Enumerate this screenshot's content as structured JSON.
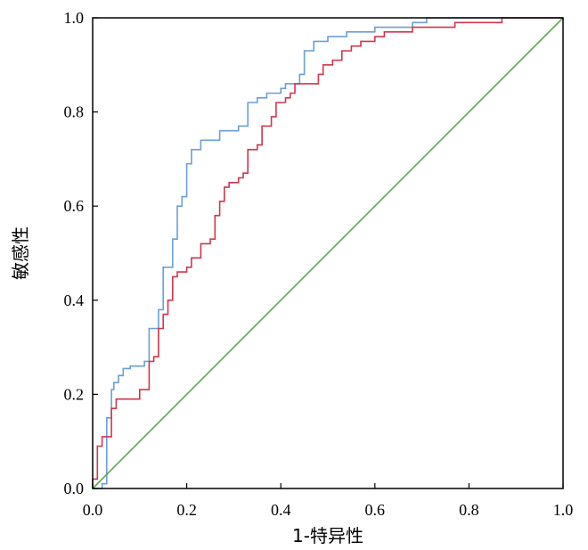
{
  "chart_data": {
    "type": "line",
    "title": "",
    "xlabel": "1-特异性",
    "ylabel": "敏感性",
    "xlim": [
      0.0,
      1.0
    ],
    "ylim": [
      0.0,
      1.0
    ],
    "x_ticks": [
      "0.0",
      "0.2",
      "0.4",
      "0.6",
      "0.8",
      "1.0"
    ],
    "y_ticks": [
      "0.0",
      "0.2",
      "0.4",
      "0.6",
      "0.8",
      "1.0"
    ],
    "grid": false,
    "legend": "none",
    "series": [
      {
        "color": "#6a9fd8",
        "points": [
          [
            0.0,
            0.0
          ],
          [
            0.02,
            0.0
          ],
          [
            0.02,
            0.01
          ],
          [
            0.03,
            0.01
          ],
          [
            0.03,
            0.15
          ],
          [
            0.04,
            0.15
          ],
          [
            0.04,
            0.21
          ],
          [
            0.045,
            0.21
          ],
          [
            0.045,
            0.225
          ],
          [
            0.055,
            0.225
          ],
          [
            0.055,
            0.24
          ],
          [
            0.065,
            0.24
          ],
          [
            0.065,
            0.255
          ],
          [
            0.08,
            0.255
          ],
          [
            0.08,
            0.26
          ],
          [
            0.11,
            0.26
          ],
          [
            0.11,
            0.27
          ],
          [
            0.12,
            0.27
          ],
          [
            0.12,
            0.34
          ],
          [
            0.14,
            0.34
          ],
          [
            0.14,
            0.38
          ],
          [
            0.15,
            0.38
          ],
          [
            0.15,
            0.47
          ],
          [
            0.17,
            0.47
          ],
          [
            0.17,
            0.53
          ],
          [
            0.18,
            0.53
          ],
          [
            0.18,
            0.6
          ],
          [
            0.19,
            0.6
          ],
          [
            0.19,
            0.62
          ],
          [
            0.2,
            0.62
          ],
          [
            0.2,
            0.69
          ],
          [
            0.21,
            0.69
          ],
          [
            0.21,
            0.72
          ],
          [
            0.23,
            0.72
          ],
          [
            0.23,
            0.74
          ],
          [
            0.27,
            0.74
          ],
          [
            0.27,
            0.76
          ],
          [
            0.31,
            0.76
          ],
          [
            0.31,
            0.77
          ],
          [
            0.33,
            0.77
          ],
          [
            0.33,
            0.82
          ],
          [
            0.35,
            0.82
          ],
          [
            0.35,
            0.83
          ],
          [
            0.37,
            0.83
          ],
          [
            0.37,
            0.84
          ],
          [
            0.4,
            0.84
          ],
          [
            0.4,
            0.85
          ],
          [
            0.41,
            0.85
          ],
          [
            0.41,
            0.86
          ],
          [
            0.44,
            0.86
          ],
          [
            0.44,
            0.88
          ],
          [
            0.45,
            0.88
          ],
          [
            0.45,
            0.93
          ],
          [
            0.47,
            0.93
          ],
          [
            0.47,
            0.95
          ],
          [
            0.5,
            0.95
          ],
          [
            0.5,
            0.96
          ],
          [
            0.54,
            0.96
          ],
          [
            0.54,
            0.97
          ],
          [
            0.6,
            0.97
          ],
          [
            0.6,
            0.98
          ],
          [
            0.68,
            0.98
          ],
          [
            0.68,
            0.99
          ],
          [
            0.71,
            0.99
          ],
          [
            0.71,
            1.0
          ],
          [
            1.0,
            1.0
          ]
        ]
      },
      {
        "color": "#d2354d",
        "points": [
          [
            0.0,
            0.0
          ],
          [
            0.0,
            0.02
          ],
          [
            0.01,
            0.02
          ],
          [
            0.01,
            0.09
          ],
          [
            0.02,
            0.09
          ],
          [
            0.02,
            0.11
          ],
          [
            0.04,
            0.11
          ],
          [
            0.04,
            0.17
          ],
          [
            0.05,
            0.17
          ],
          [
            0.05,
            0.19
          ],
          [
            0.1,
            0.19
          ],
          [
            0.1,
            0.21
          ],
          [
            0.12,
            0.21
          ],
          [
            0.12,
            0.27
          ],
          [
            0.13,
            0.27
          ],
          [
            0.13,
            0.28
          ],
          [
            0.14,
            0.28
          ],
          [
            0.14,
            0.34
          ],
          [
            0.15,
            0.34
          ],
          [
            0.15,
            0.37
          ],
          [
            0.16,
            0.37
          ],
          [
            0.16,
            0.4
          ],
          [
            0.17,
            0.4
          ],
          [
            0.17,
            0.45
          ],
          [
            0.18,
            0.45
          ],
          [
            0.18,
            0.46
          ],
          [
            0.2,
            0.46
          ],
          [
            0.2,
            0.47
          ],
          [
            0.21,
            0.47
          ],
          [
            0.21,
            0.49
          ],
          [
            0.23,
            0.49
          ],
          [
            0.23,
            0.52
          ],
          [
            0.25,
            0.52
          ],
          [
            0.25,
            0.53
          ],
          [
            0.26,
            0.53
          ],
          [
            0.26,
            0.58
          ],
          [
            0.27,
            0.58
          ],
          [
            0.27,
            0.61
          ],
          [
            0.28,
            0.61
          ],
          [
            0.28,
            0.64
          ],
          [
            0.29,
            0.64
          ],
          [
            0.29,
            0.65
          ],
          [
            0.31,
            0.65
          ],
          [
            0.31,
            0.66
          ],
          [
            0.32,
            0.66
          ],
          [
            0.32,
            0.67
          ],
          [
            0.33,
            0.67
          ],
          [
            0.33,
            0.72
          ],
          [
            0.35,
            0.72
          ],
          [
            0.35,
            0.73
          ],
          [
            0.36,
            0.73
          ],
          [
            0.36,
            0.77
          ],
          [
            0.38,
            0.77
          ],
          [
            0.38,
            0.79
          ],
          [
            0.39,
            0.79
          ],
          [
            0.39,
            0.82
          ],
          [
            0.41,
            0.82
          ],
          [
            0.41,
            0.83
          ],
          [
            0.42,
            0.83
          ],
          [
            0.42,
            0.84
          ],
          [
            0.43,
            0.84
          ],
          [
            0.43,
            0.86
          ],
          [
            0.48,
            0.86
          ],
          [
            0.48,
            0.88
          ],
          [
            0.49,
            0.88
          ],
          [
            0.49,
            0.9
          ],
          [
            0.51,
            0.9
          ],
          [
            0.51,
            0.91
          ],
          [
            0.53,
            0.91
          ],
          [
            0.53,
            0.93
          ],
          [
            0.55,
            0.93
          ],
          [
            0.55,
            0.94
          ],
          [
            0.57,
            0.94
          ],
          [
            0.57,
            0.95
          ],
          [
            0.6,
            0.95
          ],
          [
            0.6,
            0.96
          ],
          [
            0.62,
            0.96
          ],
          [
            0.62,
            0.97
          ],
          [
            0.68,
            0.97
          ],
          [
            0.68,
            0.98
          ],
          [
            0.77,
            0.98
          ],
          [
            0.77,
            0.99
          ],
          [
            0.87,
            0.99
          ],
          [
            0.87,
            1.0
          ],
          [
            1.0,
            1.0
          ]
        ]
      },
      {
        "color": "#5ca84e",
        "points": [
          [
            0.0,
            0.0
          ],
          [
            1.0,
            1.0
          ]
        ]
      }
    ]
  }
}
